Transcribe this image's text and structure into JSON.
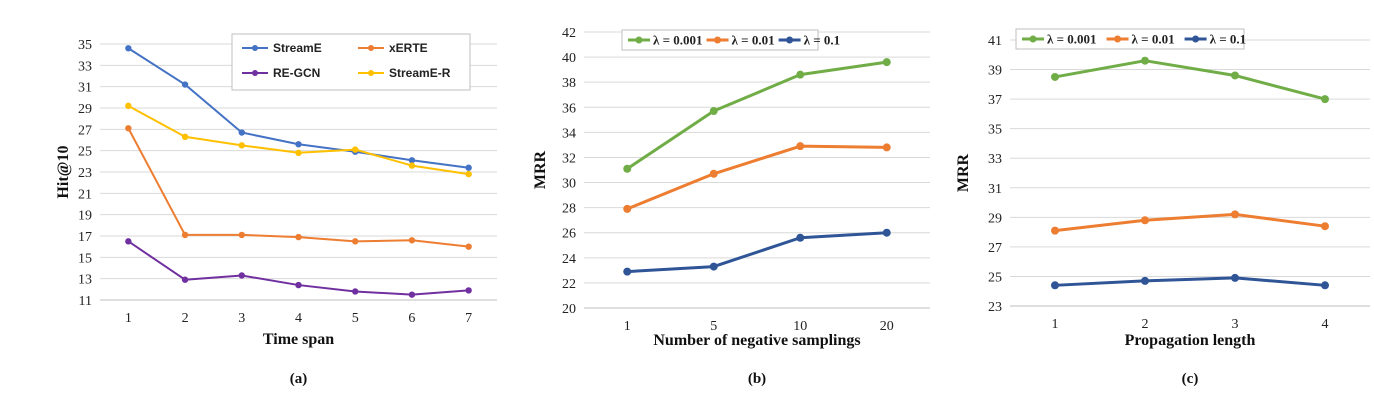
{
  "chart_data": [
    {
      "type": "line",
      "panel_label": "(a)",
      "xlabel": "Time span",
      "ylabel": "Hit@10",
      "categories": [
        "1",
        "2",
        "3",
        "4",
        "5",
        "6",
        "7"
      ],
      "ylim": [
        11,
        35
      ],
      "yticks": [
        11,
        13,
        15,
        17,
        19,
        21,
        23,
        25,
        27,
        29,
        31,
        33,
        35
      ],
      "grid": true,
      "legend": "top-right",
      "series": [
        {
          "name": "StreamE",
          "color": "#4472C4",
          "values": [
            34.6,
            31.2,
            26.7,
            25.6,
            24.9,
            24.1,
            23.4
          ]
        },
        {
          "name": "xERTE",
          "color": "#ED7D31",
          "values": [
            27.1,
            17.1,
            17.1,
            16.9,
            16.5,
            16.6,
            16.0
          ]
        },
        {
          "name": "RE-GCN",
          "color": "#7030A0",
          "values": [
            16.5,
            12.9,
            13.3,
            12.4,
            11.8,
            11.5,
            11.9
          ]
        },
        {
          "name": "StreamE-R",
          "color": "#FFC000",
          "values": [
            29.2,
            26.3,
            25.5,
            24.8,
            25.1,
            23.6,
            22.8
          ]
        }
      ]
    },
    {
      "type": "line",
      "panel_label": "(b)",
      "xlabel": "Number of negative samplings",
      "ylabel": "MRR",
      "categories": [
        "1",
        "5",
        "10",
        "20"
      ],
      "ylim": [
        20,
        42
      ],
      "yticks": [
        20,
        22,
        24,
        26,
        28,
        30,
        32,
        34,
        36,
        38,
        40,
        42
      ],
      "grid": true,
      "legend": "top",
      "series": [
        {
          "name": "λ = 0.001",
          "color": "#70AD47",
          "values": [
            31.1,
            35.7,
            38.6,
            39.6
          ]
        },
        {
          "name": "λ = 0.01",
          "color": "#ED7D31",
          "values": [
            27.9,
            30.7,
            32.9,
            32.8
          ]
        },
        {
          "name": "λ = 0.1",
          "color": "#2F5597",
          "values": [
            22.9,
            23.3,
            25.6,
            26.0
          ]
        }
      ]
    },
    {
      "type": "line",
      "panel_label": "(c)",
      "xlabel": "Propagation length",
      "ylabel": "MRR",
      "categories": [
        "1",
        "2",
        "3",
        "4"
      ],
      "ylim": [
        23,
        41
      ],
      "yticks": [
        23,
        25,
        27,
        29,
        31,
        33,
        35,
        37,
        39,
        41
      ],
      "grid": true,
      "legend": "top",
      "series": [
        {
          "name": "λ = 0.001",
          "color": "#70AD47",
          "values": [
            38.5,
            39.6,
            38.6,
            37.0
          ]
        },
        {
          "name": "λ = 0.01",
          "color": "#ED7D31",
          "values": [
            28.1,
            28.8,
            29.2,
            28.4
          ]
        },
        {
          "name": "λ = 0.1",
          "color": "#2F5597",
          "values": [
            24.4,
            24.7,
            24.9,
            24.4
          ]
        }
      ]
    }
  ]
}
